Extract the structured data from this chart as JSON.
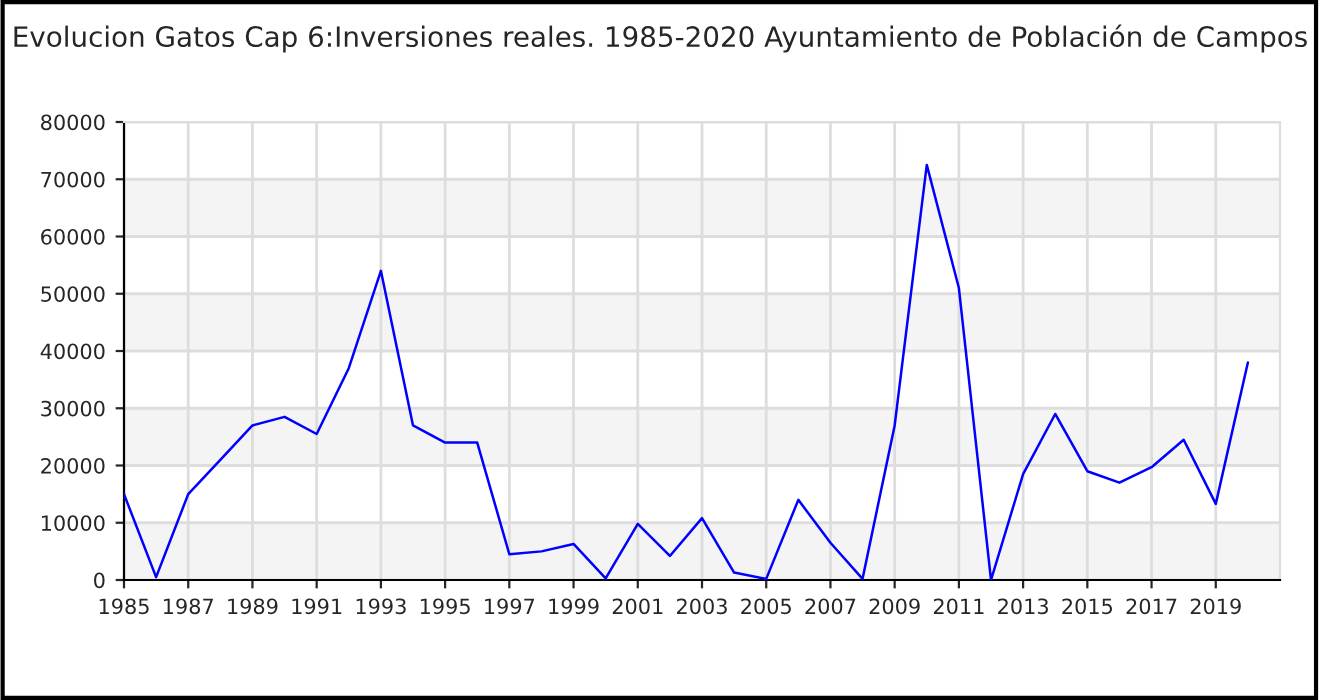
{
  "chart_data": {
    "type": "line",
    "title": "Evolucion Gatos Cap 6:Inversiones reales. 1985-2020 Ayuntamiento de Población de Campos",
    "x": [
      1985,
      1986,
      1987,
      1988,
      1989,
      1990,
      1991,
      1992,
      1993,
      1994,
      1995,
      1996,
      1997,
      1998,
      1999,
      2000,
      2001,
      2002,
      2003,
      2004,
      2005,
      2006,
      2007,
      2008,
      2009,
      2010,
      2011,
      2012,
      2013,
      2014,
      2015,
      2016,
      2017,
      2018,
      2019,
      2020
    ],
    "series": [
      {
        "color": "#0000ff",
        "values": [
          15000,
          500,
          15000,
          21000,
          27000,
          28500,
          25500,
          37000,
          54000,
          27000,
          24000,
          24000,
          4500,
          5000,
          6300,
          300,
          9800,
          4200,
          10800,
          1300,
          200,
          14000,
          6500,
          200,
          27000,
          72500,
          51000,
          0,
          18500,
          29000,
          19000,
          17000,
          19700,
          24500,
          13300,
          38000
        ]
      }
    ],
    "xlim": [
      1985,
      2021
    ],
    "xticks": [
      1985,
      1987,
      1989,
      1991,
      1993,
      1995,
      1997,
      1999,
      2001,
      2003,
      2005,
      2007,
      2009,
      2011,
      2013,
      2015,
      2017,
      2019
    ],
    "ylim": [
      0,
      80000
    ],
    "yticks": [
      0,
      10000,
      20000,
      30000,
      40000,
      50000,
      60000,
      70000,
      80000
    ],
    "bands": [
      {
        "axis": "y",
        "from": 0,
        "to": 10000,
        "color": "#f4f4f4"
      },
      {
        "axis": "y",
        "from": 20000,
        "to": 30000,
        "color": "#f4f4f4"
      },
      {
        "axis": "y",
        "from": 40000,
        "to": 50000,
        "color": "#f4f4f4"
      },
      {
        "axis": "y",
        "from": 60000,
        "to": 70000,
        "color": "#f4f4f4"
      }
    ],
    "grid": true,
    "line_style": "solid",
    "marker": "none"
  }
}
